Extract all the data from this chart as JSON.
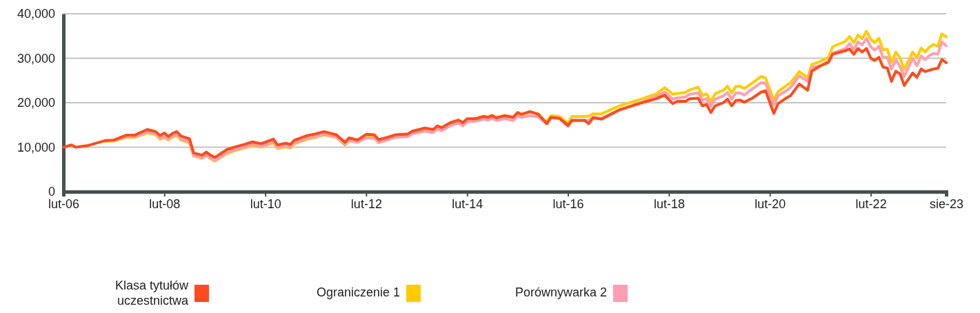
{
  "chart_data": {
    "type": "line",
    "x": [
      "2006-02",
      "2006-04",
      "2006-05",
      "2006-08",
      "2006-12",
      "2007-02",
      "2007-05",
      "2007-07",
      "2007-10",
      "2007-12",
      "2008-01",
      "2008-02",
      "2008-03",
      "2008-04",
      "2008-05",
      "2008-06",
      "2008-08",
      "2008-09",
      "2008-11",
      "2008-12",
      "2009-01",
      "2009-02",
      "2009-05",
      "2009-07",
      "2009-09",
      "2009-11",
      "2010-01",
      "2010-04",
      "2010-05",
      "2010-07",
      "2010-08",
      "2010-09",
      "2010-10",
      "2010-12",
      "2011-02",
      "2011-04",
      "2011-07",
      "2011-09",
      "2011-10",
      "2011-12",
      "2012-02",
      "2012-04",
      "2012-05",
      "2012-07",
      "2012-09",
      "2012-12",
      "2013-01",
      "2013-04",
      "2013-06",
      "2013-07",
      "2013-08",
      "2013-10",
      "2013-12",
      "2014-01",
      "2014-02",
      "2014-04",
      "2014-06",
      "2014-07",
      "2014-08",
      "2014-09",
      "2014-11",
      "2015-01",
      "2015-02",
      "2015-03",
      "2015-05",
      "2015-07",
      "2015-09",
      "2015-10",
      "2015-12",
      "2016-02",
      "2016-03",
      "2016-06",
      "2016-07",
      "2016-08",
      "2016-10",
      "2017-02",
      "2017-05",
      "2017-08",
      "2017-11",
      "2018-01",
      "2018-03",
      "2018-04",
      "2018-06",
      "2018-07",
      "2018-09",
      "2018-10",
      "2018-11",
      "2018-12",
      "2019-01",
      "2019-03",
      "2019-04",
      "2019-05",
      "2019-06",
      "2019-07",
      "2019-08",
      "2019-10",
      "2019-12",
      "2020-01",
      "2020-03",
      "2020-04",
      "2020-06",
      "2020-07",
      "2020-09",
      "2020-11",
      "2020-12",
      "2021-02",
      "2021-04",
      "2021-05",
      "2021-08",
      "2021-09",
      "2021-10",
      "2021-11",
      "2021-12",
      "2022-01",
      "2022-02",
      "2022-03",
      "2022-04",
      "2022-05",
      "2022-06",
      "2022-07",
      "2022-08",
      "2022-09",
      "2022-10",
      "2022-12",
      "2023-01",
      "2023-02",
      "2023-03",
      "2023-04",
      "2023-05",
      "2023-06",
      "2023-07",
      "2023-08"
    ],
    "xlim": [
      "2006-02",
      "2023-08"
    ],
    "xticks": [
      {
        "value": "2006-02",
        "label": "lut-06"
      },
      {
        "value": "2008-02",
        "label": "lut-08"
      },
      {
        "value": "2010-02",
        "label": "lut-10"
      },
      {
        "value": "2012-02",
        "label": "lut-12"
      },
      {
        "value": "2014-02",
        "label": "lut-14"
      },
      {
        "value": "2016-02",
        "label": "lut-16"
      },
      {
        "value": "2018-02",
        "label": "lut-18"
      },
      {
        "value": "2020-02",
        "label": "lut-20"
      },
      {
        "value": "2022-02",
        "label": "lut-22"
      },
      {
        "value": "2023-08",
        "label": "sie-23"
      }
    ],
    "ylim": [
      0,
      40000
    ],
    "yticks": [
      0,
      {
        "value": 10000,
        "label": "10,000"
      },
      {
        "value": 20000,
        "label": "20,000"
      },
      {
        "value": 30000,
        "label": "30,000"
      },
      {
        "value": 40000,
        "label": "40,000"
      }
    ],
    "grid": "y",
    "legend": "bottom",
    "series": [
      {
        "name": "Klasa tytułów uczestnictwa",
        "color": "#fc4c1c",
        "values": [
          10000,
          10500,
          10000,
          10400,
          11500,
          11600,
          12700,
          12700,
          14000,
          13500,
          12600,
          13200,
          12400,
          13100,
          13500,
          12500,
          11900,
          8700,
          8200,
          8900,
          8200,
          7700,
          9500,
          10100,
          10600,
          11200,
          10800,
          11800,
          10500,
          10900,
          10600,
          11600,
          11900,
          12600,
          13000,
          13500,
          12800,
          11100,
          12100,
          11600,
          12900,
          12800,
          11700,
          12200,
          12800,
          13000,
          13600,
          14300,
          14000,
          14800,
          14400,
          15500,
          16100,
          15500,
          16400,
          16400,
          16900,
          16700,
          17100,
          16600,
          17100,
          16700,
          17800,
          17400,
          18000,
          17400,
          15300,
          16700,
          16500,
          14900,
          16000,
          16000,
          15300,
          16600,
          16300,
          18300,
          19200,
          20100,
          20900,
          21700,
          19800,
          20300,
          20300,
          20900,
          21000,
          19300,
          19600,
          17800,
          19300,
          20000,
          20800,
          19300,
          20500,
          20600,
          20100,
          21100,
          22400,
          22700,
          17600,
          19800,
          21100,
          21600,
          24200,
          22800,
          27100,
          28300,
          29100,
          30900,
          31700,
          32100,
          30900,
          32200,
          31400,
          32200,
          30000,
          29500,
          30200,
          28000,
          27800,
          24800,
          27100,
          26500,
          23900,
          26700,
          25700,
          27600,
          27000,
          27300,
          27600,
          27700,
          29700,
          29000
        ]
      },
      {
        "name": "Ograniczenie 1",
        "color": "#ffcc00",
        "values": [
          null,
          null,
          null,
          null,
          11300,
          11400,
          12200,
          12200,
          13200,
          12800,
          11800,
          12200,
          11600,
          12300,
          12700,
          11600,
          11000,
          8000,
          7500,
          8200,
          7400,
          6900,
          8600,
          9300,
          9800,
          10400,
          10000,
          11000,
          9700,
          10100,
          9800,
          10800,
          11100,
          11800,
          12200,
          12800,
          12200,
          10500,
          11500,
          11100,
          12500,
          12500,
          11400,
          12000,
          12600,
          12800,
          13400,
          14100,
          13800,
          14600,
          14200,
          15300,
          16000,
          15400,
          16300,
          16400,
          17000,
          16800,
          17200,
          16700,
          17100,
          16800,
          17600,
          17300,
          17900,
          17500,
          15600,
          17100,
          16900,
          15400,
          16900,
          16900,
          17000,
          17500,
          17500,
          19200,
          20100,
          21000,
          22000,
          23400,
          21900,
          22100,
          22300,
          22900,
          23500,
          21600,
          22000,
          20300,
          22000,
          22800,
          23700,
          22200,
          23700,
          23700,
          23200,
          24500,
          25900,
          25600,
          20600,
          22500,
          23900,
          24500,
          27000,
          25600,
          28600,
          29300,
          30200,
          32600,
          33800,
          34900,
          33500,
          35200,
          34400,
          36100,
          34300,
          33500,
          34500,
          31900,
          32000,
          29100,
          31400,
          30100,
          27500,
          31400,
          30100,
          32300,
          31400,
          32500,
          33100,
          32700,
          35500,
          34800
        ]
      },
      {
        "name": "Porównywarka 2",
        "color": "#ff9eb2",
        "values": [
          null,
          null,
          null,
          null,
          11400,
          11500,
          12400,
          12300,
          13400,
          13000,
          12000,
          12400,
          11800,
          12500,
          12900,
          11800,
          11200,
          8100,
          7600,
          8300,
          7500,
          7000,
          8800,
          9500,
          10000,
          10600,
          10200,
          11200,
          9900,
          10300,
          10000,
          11000,
          11300,
          12000,
          12400,
          12900,
          12300,
          10600,
          11600,
          11100,
          12100,
          12000,
          11000,
          11600,
          12200,
          12400,
          13000,
          13600,
          13300,
          14100,
          13700,
          14800,
          15400,
          14800,
          15700,
          15800,
          16300,
          16100,
          16500,
          16000,
          16400,
          16000,
          17000,
          16700,
          17100,
          16800,
          15300,
          16700,
          16400,
          14700,
          16100,
          16100,
          16000,
          16800,
          16500,
          18300,
          19300,
          20300,
          21400,
          22400,
          20800,
          21100,
          21300,
          21900,
          22200,
          20600,
          20900,
          19200,
          20800,
          21500,
          22300,
          20800,
          22200,
          22200,
          21700,
          23200,
          24500,
          24400,
          19400,
          21600,
          22700,
          23500,
          26000,
          24800,
          27900,
          28300,
          29400,
          31100,
          32200,
          33300,
          31900,
          33700,
          33000,
          34500,
          32600,
          31800,
          32700,
          30200,
          30200,
          27600,
          29700,
          28100,
          25900,
          30000,
          28300,
          30500,
          29700,
          30600,
          31100,
          30900,
          33700,
          32800
        ]
      }
    ]
  }
}
